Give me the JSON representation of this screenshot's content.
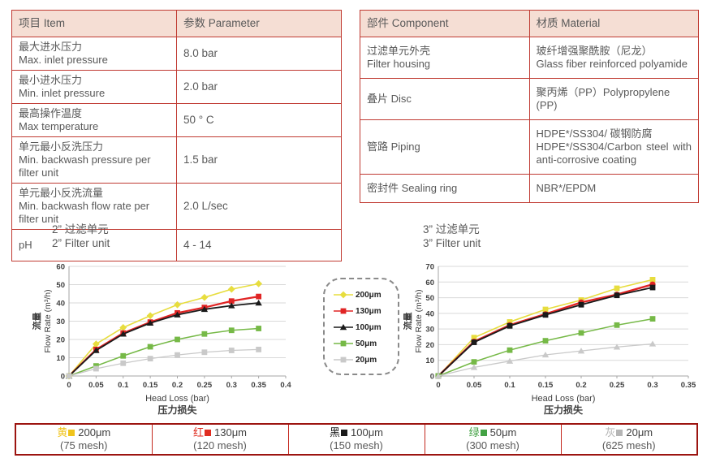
{
  "theme": {
    "table_border_red": "#c03a32",
    "mesh_border_red": "#c4281e",
    "mesh_border_dark": "#9c1410",
    "header_bg": "#f5ded4",
    "text_gray": "#595959",
    "gridline": "#d9d9d9",
    "axis": "#a6a6a6"
  },
  "spec_table": {
    "col_item": "项目 Item",
    "col_parameter": "参数 Parameter",
    "rows": [
      {
        "zh": "最大进水压力",
        "en": "Max. inlet pressure",
        "value": "8.0 bar"
      },
      {
        "zh": "最小进水压力",
        "en": "Min. inlet pressure",
        "value": "2.0 bar"
      },
      {
        "zh": "最高操作温度",
        "en": "Max temperature",
        "value": "50 ° C"
      },
      {
        "zh": "单元最小反洗压力",
        "en": "Min. backwash pressure per filter unit",
        "value": "1.5 bar"
      },
      {
        "zh": "单元最小反洗流量",
        "en": "Min. backwash flow rate per filter unit",
        "value": "2.0 L/sec"
      },
      {
        "zh": "pH",
        "en": "",
        "value": "4 - 14"
      }
    ]
  },
  "material_table": {
    "col_component": "部件 Component",
    "col_material": "材质 Material",
    "rows": [
      {
        "component_zh": "过滤单元外壳",
        "component_en": "Filter housing",
        "material_zh": "玻纤增强聚酰胺（尼龙）",
        "material_en": "Glass fiber reinforced polyamide"
      },
      {
        "component_zh": "叠片 Disc",
        "component_en": "",
        "material_zh": "聚丙烯（PP）Polypropylene (PP)",
        "material_en": ""
      },
      {
        "component_zh": "管路 Piping",
        "component_en": "",
        "material_zh": "HDPE*/SS304/ 碳钢防腐",
        "material_en": "HDPE*/SS304/Carbon steel with anti-corrosive coating"
      },
      {
        "component_zh": "密封件 Sealing ring",
        "component_en": "",
        "material_zh": "NBR*/EPDM",
        "material_en": ""
      }
    ]
  },
  "chart_data": [
    {
      "type": "line",
      "title_zh": "2” 过滤单元",
      "title_en": "2” Filter unit",
      "ylabel_zh": "流量",
      "ylabel_en": "Flow Rate (m³/h)",
      "xlabel_en": "Head Loss (bar)",
      "xlabel_zh": "压力损失",
      "xlim": [
        0,
        0.4
      ],
      "xticks": [
        0,
        0.05,
        0.1,
        0.15,
        0.2,
        0.25,
        0.3,
        0.35,
        0.4
      ],
      "ylim": [
        0,
        60
      ],
      "yticks": [
        0,
        10,
        20,
        30,
        40,
        50,
        60
      ],
      "grid": true,
      "x": [
        0,
        0.05,
        0.1,
        0.15,
        0.2,
        0.25,
        0.3,
        0.35
      ],
      "series": [
        {
          "name": "200μm",
          "color": "#e7dd3e",
          "marker": "diamond",
          "line_width": 1.6,
          "values": [
            0,
            17.5,
            26.5,
            33,
            39,
            43,
            47.5,
            50.5
          ]
        },
        {
          "name": "130μm",
          "color": "#e02424",
          "marker": "square",
          "line_width": 2.2,
          "values": [
            0,
            14.5,
            23.5,
            29.5,
            34.5,
            37.5,
            41,
            43.5
          ]
        },
        {
          "name": "100μm",
          "color": "#1a1a1a",
          "marker": "triangle",
          "line_width": 1.8,
          "values": [
            0,
            14,
            23,
            29,
            33.5,
            36.5,
            38.5,
            40
          ]
        },
        {
          "name": "50μm",
          "color": "#76b947",
          "marker": "square",
          "line_width": 1.5,
          "values": [
            0,
            5.5,
            11,
            16,
            20,
            23,
            25,
            26
          ]
        },
        {
          "name": "20μm",
          "color": "#c9c9c9",
          "marker": "square",
          "line_width": 1.3,
          "values": [
            0,
            4,
            7,
            9.5,
            11.5,
            13,
            14,
            14.5
          ]
        }
      ]
    },
    {
      "type": "line",
      "title_zh": "3” 过滤单元",
      "title_en": "3” Filter unit",
      "ylabel_zh": "流量",
      "ylabel_en": "Flow Rate (m³/h)",
      "xlabel_en": "Head Loss (bar)",
      "xlabel_zh": "压力损失",
      "xlim": [
        0,
        0.35
      ],
      "xticks": [
        0,
        0.05,
        0.1,
        0.15,
        0.2,
        0.25,
        0.3,
        0.35
      ],
      "ylim": [
        0,
        70
      ],
      "yticks": [
        0,
        10,
        20,
        30,
        40,
        50,
        60,
        70
      ],
      "grid": true,
      "x": [
        0,
        0.05,
        0.1,
        0.15,
        0.2,
        0.25,
        0.3
      ],
      "series": [
        {
          "name": "200μm",
          "color": "#e7dd3e",
          "marker": "square",
          "line_width": 1.6,
          "values": [
            0,
            24.5,
            34.5,
            42.5,
            48.5,
            56,
            61.5
          ]
        },
        {
          "name": "130μm",
          "color": "#e02424",
          "marker": "circle",
          "line_width": 2.4,
          "values": [
            0,
            22,
            32.5,
            39.5,
            47,
            52,
            58.5
          ]
        },
        {
          "name": "100μm",
          "color": "#1a1a1a",
          "marker": "square",
          "line_width": 1.8,
          "values": [
            0,
            21.5,
            32,
            39,
            45.5,
            51.5,
            56.5
          ]
        },
        {
          "name": "50μm",
          "color": "#76b947",
          "marker": "square",
          "line_width": 1.5,
          "values": [
            0,
            9,
            16.5,
            22.5,
            27.5,
            32.5,
            36.5
          ]
        },
        {
          "name": "20μm",
          "color": "#c9c9c9",
          "marker": "triangle",
          "line_width": 1.3,
          "values": [
            0,
            5.5,
            9.5,
            13.5,
            16,
            18.5,
            20.5
          ]
        }
      ]
    }
  ],
  "chart_legend": {
    "items": [
      {
        "label": "200μm",
        "color": "#e7dd3e",
        "marker": "diamond"
      },
      {
        "label": "130μm",
        "color": "#e02424",
        "marker": "square"
      },
      {
        "label": "100μm",
        "color": "#1a1a1a",
        "marker": "triangle"
      },
      {
        "label": "50μm",
        "color": "#76b947",
        "marker": "square"
      },
      {
        "label": "20μm",
        "color": "#c9c9c9",
        "marker": "square"
      }
    ]
  },
  "mesh_table": {
    "cells": [
      {
        "color_zh": "黄",
        "color_hex": "#f0c41d",
        "size": "200μm",
        "mesh": "(75 mesh)"
      },
      {
        "color_zh": "红",
        "color_hex": "#e02d20",
        "size": "130μm",
        "mesh": "(120 mesh)"
      },
      {
        "color_zh": "黑",
        "color_hex": "#1a1a1a",
        "size": "100μm",
        "mesh": "(150 mesh)"
      },
      {
        "color_zh": "绿",
        "color_hex": "#43a244",
        "size": "50μm",
        "mesh": "(300 mesh)"
      },
      {
        "color_zh": "灰",
        "color_hex": "#b5b5b5",
        "size": "20μm",
        "mesh": "(625 mesh)"
      }
    ]
  }
}
